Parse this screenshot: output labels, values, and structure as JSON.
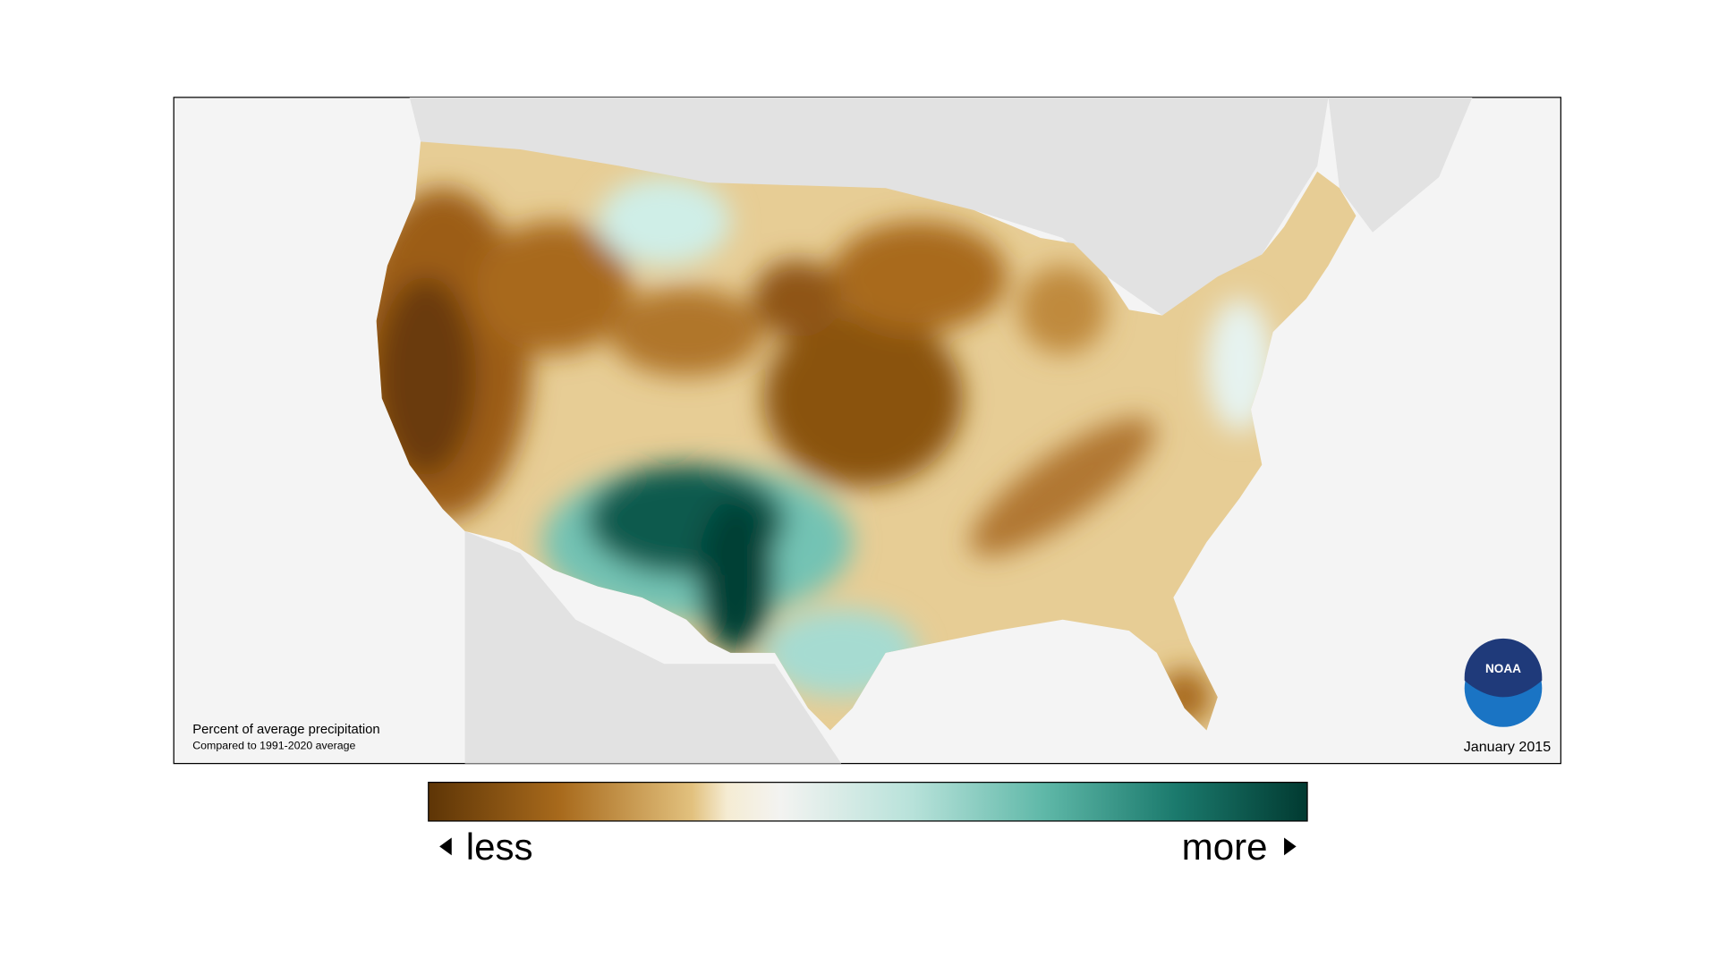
{
  "map": {
    "title": "Percent of average precipitation",
    "subtitle": "Compared to 1991-2020 average",
    "date": "January 2015"
  },
  "legend": {
    "low_label": "less",
    "high_label": "more"
  },
  "logo": {
    "text": "NOAA"
  }
}
